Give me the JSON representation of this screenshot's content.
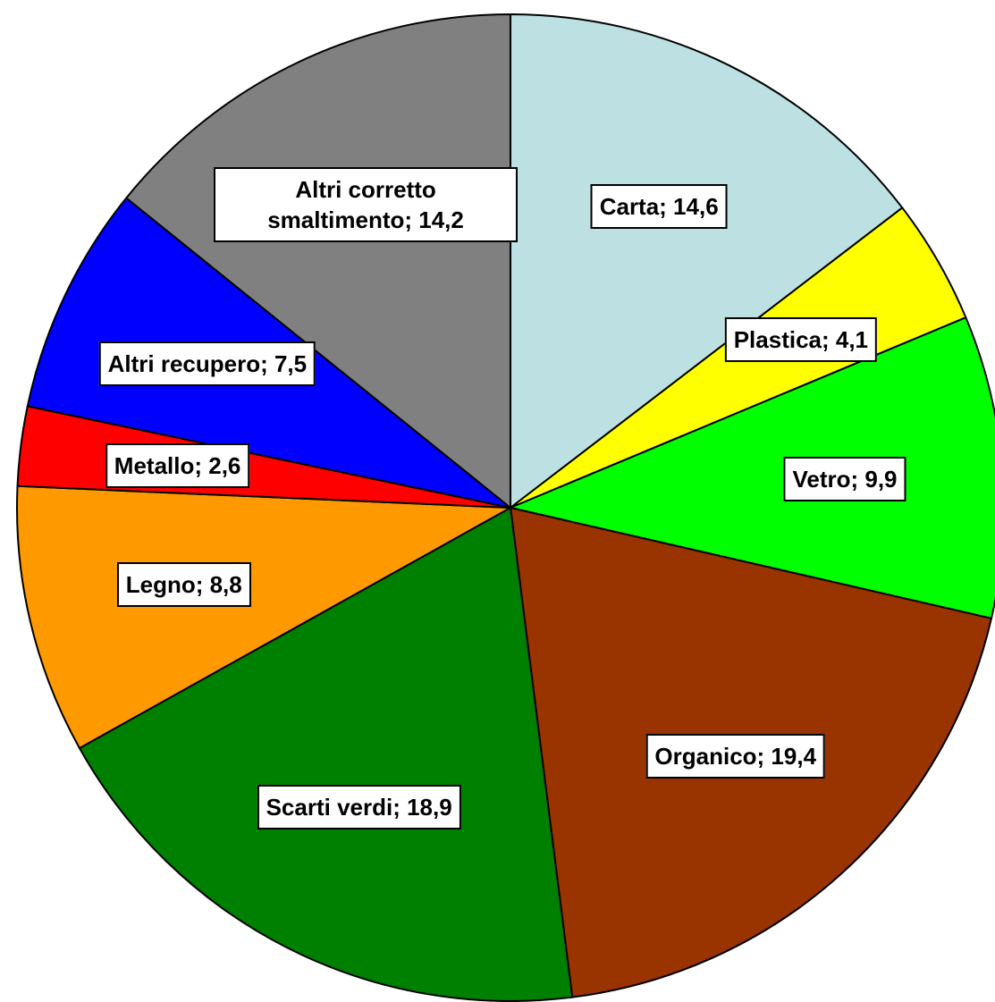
{
  "chart_data": {
    "type": "pie",
    "values": [
      14.6,
      4.1,
      9.9,
      19.4,
      18.9,
      8.8,
      2.6,
      7.5,
      14.2
    ],
    "value_labels": [
      "Carta; 14,6",
      "Plastica; 4,1",
      "Vetro; 9,9",
      "Organico; 19,4",
      "Scarti verdi; 18,9",
      "Legno; 8,8",
      "Metallo; 2,6",
      "Altri recupero; 7,5",
      "Altri corretto smaltimento; 14,2"
    ],
    "colors": [
      "#bde0e3",
      "#ffff00",
      "#00ff00",
      "#993300",
      "#008000",
      "#ff9900",
      "#ff0000",
      "#0000ff",
      "#808080"
    ]
  }
}
